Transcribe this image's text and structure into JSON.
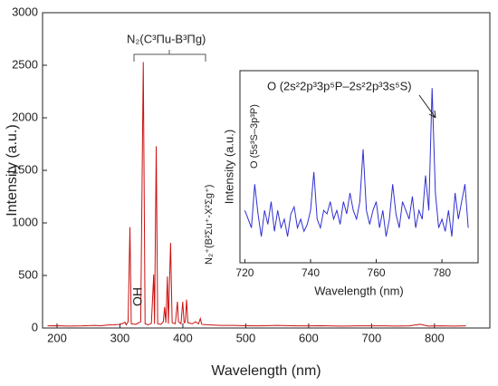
{
  "chart_data": [
    {
      "type": "line",
      "xlabel": "Wavelength (nm)",
      "ylabel": "Intensity (a.u.)",
      "x": [
        185,
        200,
        220,
        240,
        260,
        270,
        280,
        290,
        300,
        305,
        308,
        310,
        313,
        315.9,
        318,
        325,
        333,
        337.1,
        340,
        345,
        350,
        353.7,
        355,
        357.7,
        360,
        365,
        369,
        371,
        373,
        375.5,
        377,
        380.5,
        383,
        388,
        391.4,
        393,
        397,
        399.8,
        402,
        404,
        405.9,
        408,
        415,
        420,
        425,
        427.8,
        430,
        440,
        460,
        480,
        500,
        520,
        550,
        580,
        600,
        620,
        650,
        680,
        700,
        720,
        740,
        760,
        777,
        790,
        810,
        830,
        850
      ],
      "series": [
        {
          "name": "spectrum",
          "color": "#cc1010",
          "values": [
            20,
            22,
            18,
            20,
            25,
            22,
            28,
            30,
            35,
            45,
            55,
            30,
            60,
            960,
            40,
            35,
            60,
            2530,
            40,
            30,
            45,
            510,
            40,
            1730,
            40,
            35,
            60,
            200,
            50,
            490,
            40,
            810,
            50,
            40,
            250,
            60,
            40,
            250,
            50,
            60,
            270,
            50,
            40,
            60,
            40,
            90,
            35,
            30,
            25,
            25,
            22,
            20,
            25,
            20,
            20,
            22,
            18,
            20,
            20,
            20,
            18,
            20,
            35,
            18,
            20,
            18,
            20
          ]
        }
      ],
      "xlim": [
        177,
        888
      ],
      "ylim": [
        0,
        3000
      ],
      "xticks": [
        200,
        300,
        400,
        500,
        600,
        700,
        800
      ],
      "yticks": [
        0,
        500,
        1000,
        1500,
        2000,
        2500,
        3000
      ],
      "annotations": [
        "N₂(C³Πu-B³Πg)",
        "OH",
        "N₂⁺(B²Σu⁺-X²Σg⁺)"
      ]
    },
    {
      "type": "line",
      "xlabel": "Wavelength (nm)",
      "ylabel": "Intensity (a.u.)",
      "x": [
        720,
        721,
        722,
        723,
        724,
        725,
        726,
        727,
        728,
        729,
        730,
        731,
        732,
        733,
        734,
        735,
        736,
        737,
        738,
        739,
        740,
        741,
        742,
        743,
        744,
        745,
        746,
        747,
        748,
        749,
        750,
        751,
        752,
        753,
        754,
        755,
        756,
        757,
        758,
        759,
        760,
        761,
        762,
        763,
        764,
        765,
        766,
        767,
        768,
        769,
        770,
        771,
        772,
        773,
        774,
        775,
        776,
        777,
        778,
        779,
        780,
        781,
        782,
        783,
        784,
        785,
        786,
        787,
        788
      ],
      "series": [
        {
          "name": "O lines",
          "color": "#3030d0",
          "values": [
            30,
            25,
            20,
            45,
            28,
            15,
            30,
            22,
            35,
            18,
            30,
            20,
            25,
            15,
            28,
            32,
            20,
            25,
            18,
            22,
            30,
            52,
            25,
            20,
            30,
            28,
            35,
            25,
            30,
            22,
            35,
            28,
            40,
            30,
            25,
            35,
            65,
            30,
            22,
            30,
            35,
            20,
            30,
            15,
            25,
            45,
            28,
            20,
            35,
            30,
            25,
            38,
            20,
            30,
            25,
            50,
            30,
            100,
            40,
            20,
            25,
            18,
            30,
            15,
            40,
            25,
            35,
            45,
            20
          ]
        }
      ],
      "xlim": [
        718.5,
        791
      ],
      "ylim": [
        0,
        110
      ],
      "xticks": [
        720,
        740,
        760,
        780
      ],
      "annotations": [
        "O (2s²2p³3p⁵P–2s²2p³3s⁵S)",
        "O (5s³S–3p³P)"
      ]
    }
  ]
}
